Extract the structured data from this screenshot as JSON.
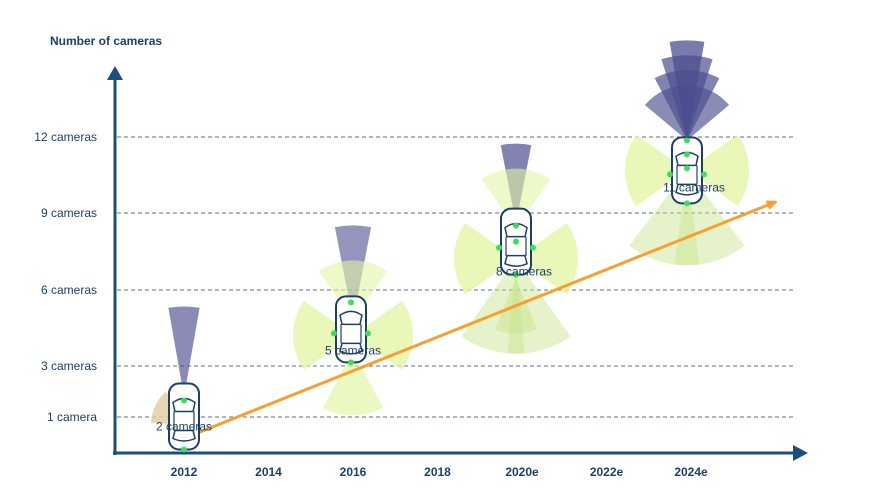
{
  "chart_data": {
    "type": "scatter",
    "title": "",
    "xlabel": "",
    "ylabel": "Number of cameras",
    "x_ticks": [
      "2012",
      "2014",
      "2016",
      "2018",
      "2020e",
      "2022e",
      "2024e"
    ],
    "y_ticks": [
      {
        "value": 1,
        "label": "1 camera"
      },
      {
        "value": 3,
        "label": "3 cameras"
      },
      {
        "value": 6,
        "label": "6 cameras"
      },
      {
        "value": 9,
        "label": "9 cameras"
      },
      {
        "value": 12,
        "label": "12 cameras"
      }
    ],
    "grid": true,
    "points": [
      {
        "x": "2012",
        "value": 2,
        "label": "2 cameras"
      },
      {
        "x": "2016",
        "value": 5,
        "label": "5 cameras"
      },
      {
        "x": "2020e",
        "value": 8,
        "label": "8 cameras"
      },
      {
        "x": "2024e",
        "value": 11,
        "label": "11 cameras"
      }
    ],
    "trend": {
      "from": "2012",
      "to": "2024e",
      "direction": "increasing"
    }
  },
  "colors": {
    "axis": "#1d4f7a",
    "text": "#1d3f66",
    "grid": "#5a6f86",
    "front_camera": "#4b4f8f",
    "side_camera": "#e3f5a6",
    "rear_camera": "#c8e48a",
    "first_camera": "#e2cfa3",
    "trend_arrow": "#f5a030",
    "sensor_dot": "#3ddc5a"
  }
}
